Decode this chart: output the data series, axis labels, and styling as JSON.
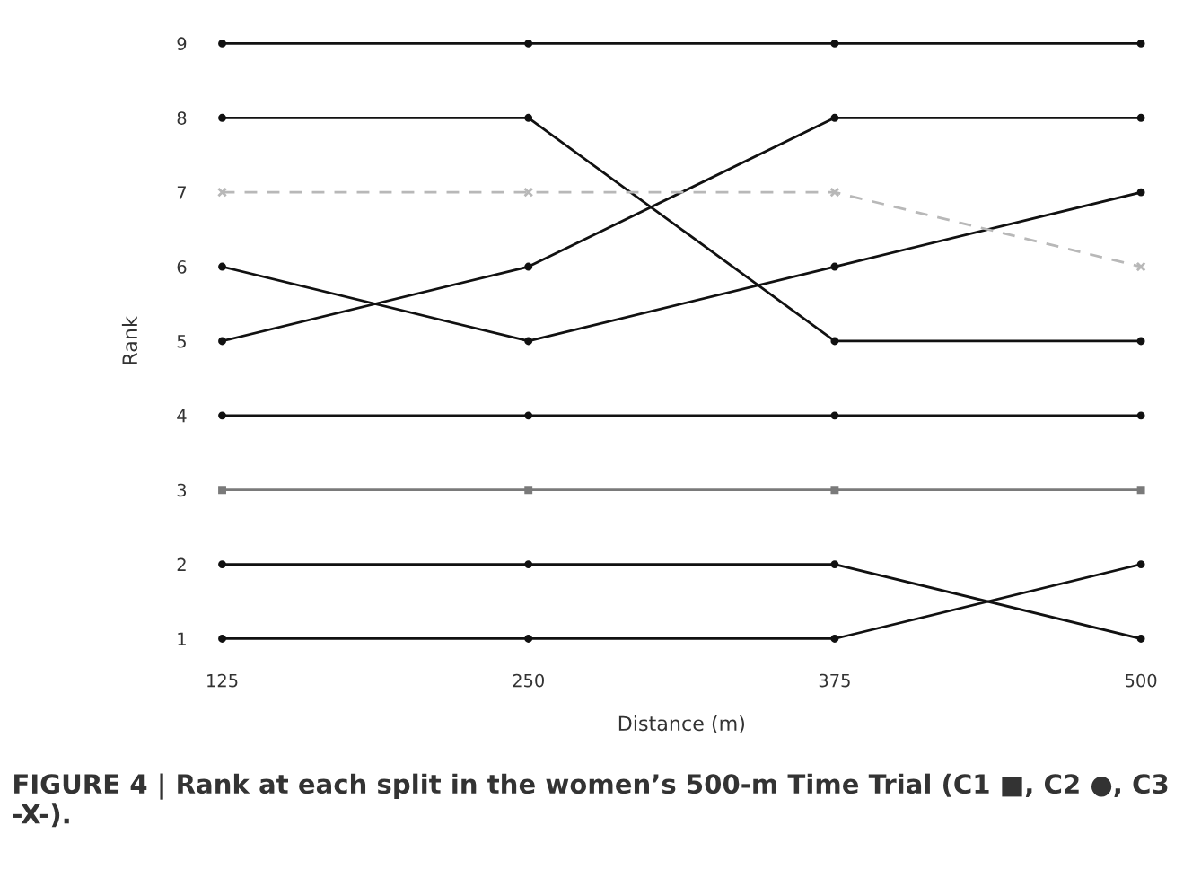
{
  "chart_data": {
    "type": "line",
    "xlabel": "Distance (m)",
    "ylabel": "Rank",
    "x": [
      125,
      250,
      375,
      500
    ],
    "xlim": [
      125,
      500
    ],
    "xticks": [
      125,
      250,
      375,
      500
    ],
    "ylim": [
      1,
      9
    ],
    "yticks": [
      1,
      2,
      3,
      4,
      5,
      6,
      7,
      8,
      9
    ],
    "grid": false,
    "series": [
      {
        "color": "#111111",
        "values": [
          9,
          9,
          9,
          9
        ],
        "marker": "circle",
        "line_style": "solid"
      },
      {
        "color": "#111111",
        "values": [
          8,
          8,
          5,
          5
        ],
        "marker": "circle",
        "line_style": "solid"
      },
      {
        "color": "#111111",
        "values": [
          5,
          6,
          8,
          8
        ],
        "marker": "circle",
        "line_style": "solid"
      },
      {
        "color": "#111111",
        "values": [
          6,
          5,
          6,
          7
        ],
        "marker": "circle",
        "line_style": "solid"
      },
      {
        "color": "#b8b8b8",
        "values": [
          7,
          7,
          7,
          6
        ],
        "marker": "cross",
        "line_style": "dashed"
      },
      {
        "color": "#111111",
        "values": [
          4,
          4,
          4,
          4
        ],
        "marker": "circle",
        "line_style": "solid"
      },
      {
        "color": "#7a7a7a",
        "values": [
          3,
          3,
          3,
          3
        ],
        "marker": "square",
        "line_style": "solid"
      },
      {
        "color": "#111111",
        "values": [
          2,
          2,
          2,
          1
        ],
        "marker": "circle",
        "line_style": "solid"
      },
      {
        "color": "#111111",
        "values": [
          1,
          1,
          1,
          2
        ],
        "marker": "circle",
        "line_style": "solid"
      }
    ],
    "annotations": [
      "FIGURE 4 | Rank at each split in the women’s 500-m Time Trial (C1 ■, C2 ●, C3 -X-)."
    ]
  }
}
